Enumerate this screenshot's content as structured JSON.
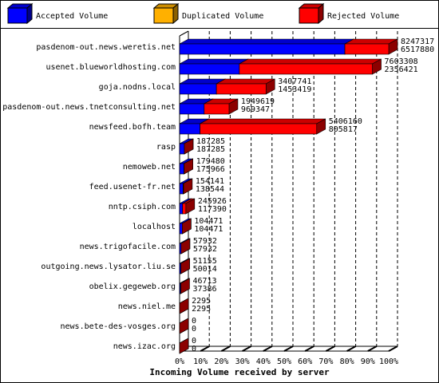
{
  "chart_data": {
    "type": "bar3d-stacked-horizontal",
    "x_label": "Incoming Volume received by server",
    "categories": [
      "pasdenom-out.news.weretis.net",
      "usenet.blueworldhosting.com",
      "goja.nodns.local",
      "pasdenom-out.news.tnetconsulting.net",
      "newsfeed.bofh.team",
      "rasp",
      "nemoweb.net",
      "feed.usenet-fr.net",
      "nntp.csiph.com",
      "localhost",
      "news.trigofacile.com",
      "outgoing.news.lysator.liu.se",
      "obelix.gegeweb.org",
      "news.niel.me",
      "news.bete-des-vosges.org",
      "news.izac.org"
    ],
    "series": [
      {
        "name": "Accepted Volume",
        "color": "#0000ff",
        "values": [
          6517880,
          2356421,
          1453419,
          969347,
          805817,
          187285,
          175966,
          138544,
          117390,
          104471,
          57932,
          50014,
          37386,
          2295,
          0,
          0
        ]
      },
      {
        "name": "Duplicated Volume",
        "color": "#ffb000",
        "values": [
          0,
          0,
          0,
          0,
          0,
          0,
          0,
          0,
          0,
          0,
          0,
          0,
          0,
          0,
          0,
          0
        ]
      },
      {
        "name": "Rejected Volume",
        "color": "#ff0000",
        "values": [
          1729437,
          5246887,
          1954322,
          980272,
          4600343,
          0,
          3514,
          15597,
          128536,
          0,
          0,
          1141,
          9327,
          0,
          0,
          0
        ]
      }
    ],
    "totals": [
      8247317,
      7603308,
      3407741,
      1949619,
      5406160,
      187285,
      179480,
      154141,
      245926,
      104471,
      57932,
      51155,
      46713,
      2295,
      0,
      0
    ],
    "xlim": [
      0,
      8247317
    ],
    "xticks": [
      {
        "value": 0,
        "label": "0%"
      },
      {
        "value": 824731.7,
        "label": "10%"
      },
      {
        "value": 1649463.4,
        "label": "20%"
      },
      {
        "value": 2474195.1,
        "label": "30%"
      },
      {
        "value": 3298926.8,
        "label": "40%"
      },
      {
        "value": 4123658.5,
        "label": "50%"
      },
      {
        "value": 4948390.2,
        "label": "60%"
      },
      {
        "value": 5773121.9,
        "label": "70%"
      },
      {
        "value": 6597853.6,
        "label": "80%"
      },
      {
        "value": 7422585.3,
        "label": "90%"
      },
      {
        "value": 8247317,
        "label": "100%"
      }
    ],
    "grid": true
  }
}
